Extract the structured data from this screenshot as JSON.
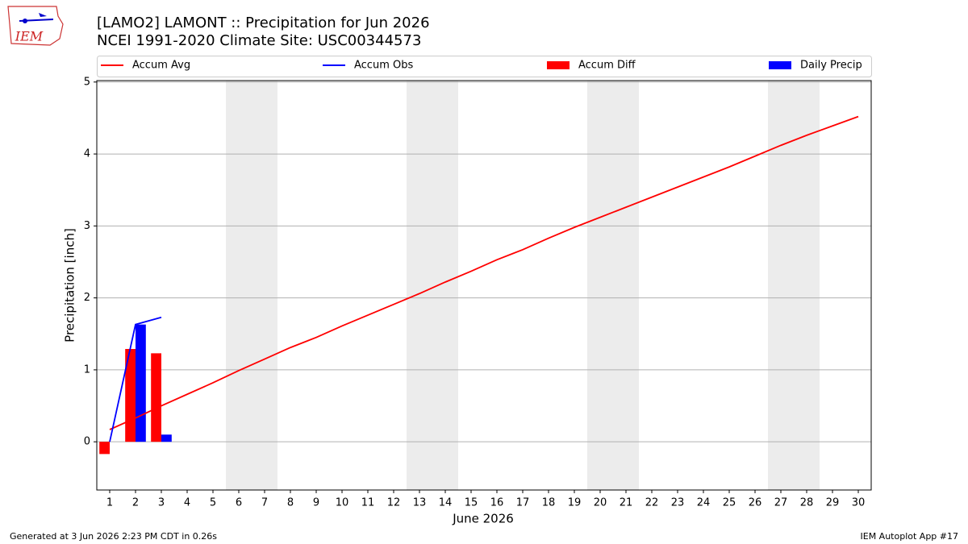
{
  "chart_data": {
    "type": "combo",
    "title": "[LAMO2] LAMONT :: Precipitation for Jun 2026",
    "subtitle": "NCEI 1991-2020 Climate Site: USC00344573",
    "xlabel": "June 2026",
    "ylabel": "Precipitation [inch]",
    "logo_text": "IEM",
    "footer_left": "Generated at 3 Jun 2026 2:23 PM CDT in 0.26s",
    "footer_right": "IEM Autoplot App #17",
    "x": [
      1,
      2,
      3,
      4,
      5,
      6,
      7,
      8,
      9,
      10,
      11,
      12,
      13,
      14,
      15,
      16,
      17,
      18,
      19,
      20,
      21,
      22,
      23,
      24,
      25,
      26,
      27,
      28,
      29,
      30
    ],
    "series": [
      {
        "name": "Accum Avg",
        "kind": "line",
        "color": "#ff0000",
        "values": [
          0.17,
          0.33,
          0.5,
          0.66,
          0.82,
          0.99,
          1.15,
          1.31,
          1.45,
          1.61,
          1.76,
          1.91,
          2.06,
          2.22,
          2.37,
          2.53,
          2.67,
          2.83,
          2.98,
          3.12,
          3.26,
          3.4,
          3.54,
          3.68,
          3.82,
          3.97,
          4.12,
          4.26,
          4.39,
          4.52
        ]
      },
      {
        "name": "Accum Obs",
        "kind": "line",
        "color": "#0000ff",
        "values": [
          0.0,
          1.63,
          1.73,
          null,
          null,
          null,
          null,
          null,
          null,
          null,
          null,
          null,
          null,
          null,
          null,
          null,
          null,
          null,
          null,
          null,
          null,
          null,
          null,
          null,
          null,
          null,
          null,
          null,
          null,
          null
        ]
      },
      {
        "name": "Accum Diff",
        "kind": "bar",
        "color": "#ff0000",
        "values": [
          -0.17,
          1.29,
          1.23,
          null,
          null,
          null,
          null,
          null,
          null,
          null,
          null,
          null,
          null,
          null,
          null,
          null,
          null,
          null,
          null,
          null,
          null,
          null,
          null,
          null,
          null,
          null,
          null,
          null,
          null,
          null
        ]
      },
      {
        "name": "Daily Precip",
        "kind": "bar",
        "color": "#0000ff",
        "values": [
          0.0,
          1.63,
          0.1,
          null,
          null,
          null,
          null,
          null,
          null,
          null,
          null,
          null,
          null,
          null,
          null,
          null,
          null,
          null,
          null,
          null,
          null,
          null,
          null,
          null,
          null,
          null,
          null,
          null,
          null,
          null
        ]
      }
    ],
    "shaded_spans": [
      [
        5.5,
        7.5
      ],
      [
        12.5,
        14.5
      ],
      [
        19.5,
        21.5
      ],
      [
        26.5,
        28.5
      ]
    ],
    "xlim": [
      0.5,
      30.5
    ],
    "ylim": [
      -0.67,
      5.02
    ],
    "xticks": [
      1,
      2,
      3,
      4,
      5,
      6,
      7,
      8,
      9,
      10,
      11,
      12,
      13,
      14,
      15,
      16,
      17,
      18,
      19,
      20,
      21,
      22,
      23,
      24,
      25,
      26,
      27,
      28,
      29,
      30
    ],
    "yticks": [
      0,
      1,
      2,
      3,
      4,
      5
    ],
    "grid": true
  }
}
